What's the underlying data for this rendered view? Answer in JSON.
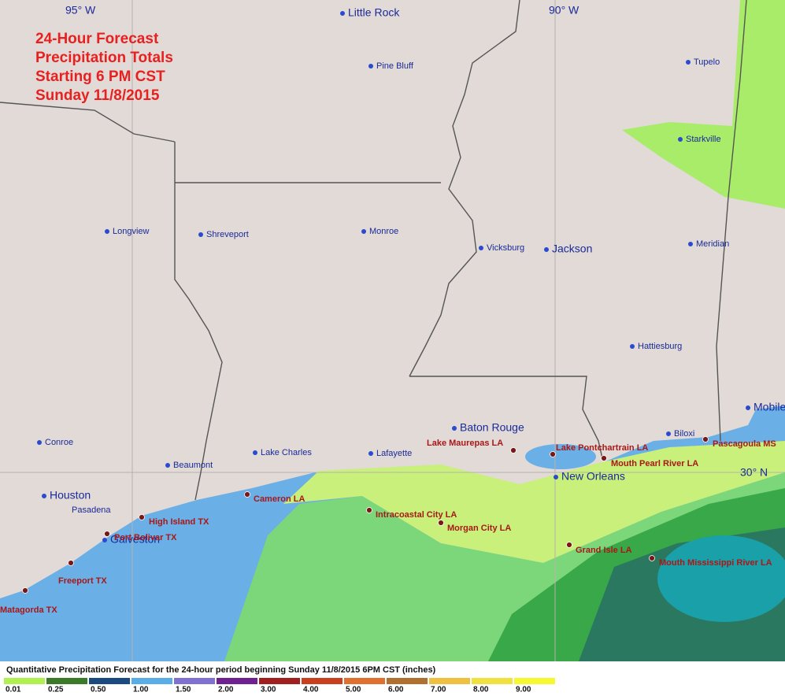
{
  "title": [
    "24-Hour Forecast",
    "Precipitation Totals",
    "Starting 6 PM CST",
    "Sunday 11/8/2015"
  ],
  "longitude_labels": [
    "95° W",
    "90° W"
  ],
  "latitude_labels": [
    "30° N"
  ],
  "cities": [
    {
      "name": "Little Rock"
    },
    {
      "name": "Pine Bluff"
    },
    {
      "name": "Tupelo"
    },
    {
      "name": "Starkville"
    },
    {
      "name": "Longview"
    },
    {
      "name": "Shreveport"
    },
    {
      "name": "Monroe"
    },
    {
      "name": "Vicksburg"
    },
    {
      "name": "Jackson"
    },
    {
      "name": "Meridian"
    },
    {
      "name": "Hattiesburg"
    },
    {
      "name": "Mobile"
    },
    {
      "name": "Baton Rouge"
    },
    {
      "name": "Biloxi"
    },
    {
      "name": "Conroe"
    },
    {
      "name": "Lake Charles"
    },
    {
      "name": "Lafayette"
    },
    {
      "name": "Beaumont"
    },
    {
      "name": "Houston"
    },
    {
      "name": "Pasadena"
    },
    {
      "name": "New Orleans"
    },
    {
      "name": "Galveston"
    }
  ],
  "forecast_points": [
    {
      "name": "Lake Maurepas LA"
    },
    {
      "name": "Lake Pontchartrain LA"
    },
    {
      "name": "Mouth Pearl River LA"
    },
    {
      "name": "Pascagoula MS"
    },
    {
      "name": "Cameron LA"
    },
    {
      "name": "High Island TX"
    },
    {
      "name": "Port Bolivar TX"
    },
    {
      "name": "Intracoastal City LA"
    },
    {
      "name": "Morgan City LA"
    },
    {
      "name": "Grand Isle LA"
    },
    {
      "name": "Mouth Mississippi River LA"
    },
    {
      "name": "Freeport TX"
    },
    {
      "name": "Matagorda TX"
    }
  ],
  "legend": {
    "title": "Quantitative Precipitation Forecast for the 24-hour period beginning Sunday 11/8/2015 6PM CST (inches)",
    "items": [
      {
        "label": "0.01",
        "color": "#b0f050"
      },
      {
        "label": "0.25",
        "color": "#3a7a28"
      },
      {
        "label": "0.50",
        "color": "#1a4a80"
      },
      {
        "label": "1.00",
        "color": "#5aaee8"
      },
      {
        "label": "1.50",
        "color": "#8070d0"
      },
      {
        "label": "2.00",
        "color": "#702090"
      },
      {
        "label": "3.00",
        "color": "#a02020"
      },
      {
        "label": "4.00",
        "color": "#c84020"
      },
      {
        "label": "5.00",
        "color": "#e07030"
      },
      {
        "label": "6.00",
        "color": "#b07030"
      },
      {
        "label": "7.00",
        "color": "#f0c040"
      },
      {
        "label": "8.00",
        "color": "#f0e040"
      },
      {
        "label": "9.00",
        "color": "#f8f830"
      }
    ]
  }
}
